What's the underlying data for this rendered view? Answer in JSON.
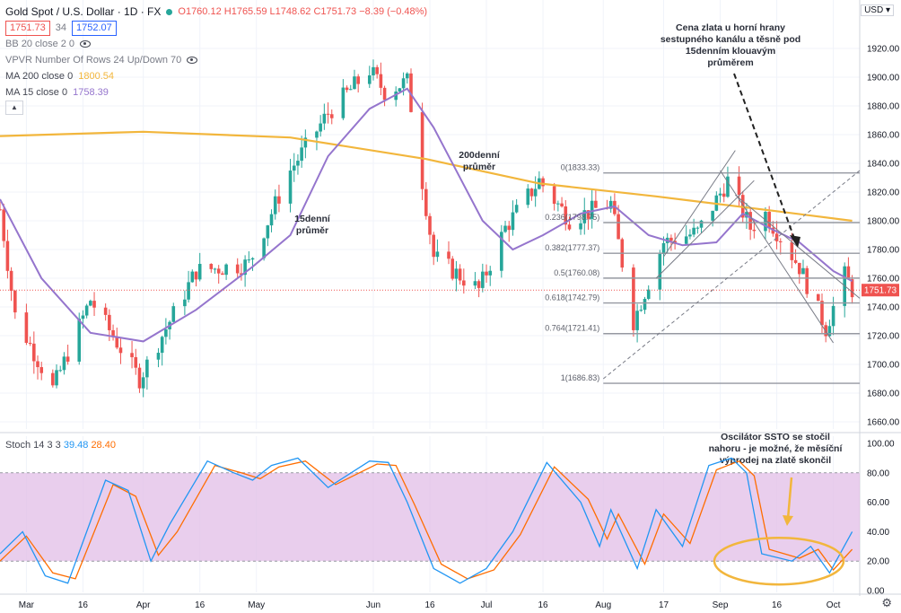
{
  "header": {
    "title": "Gold Spot / U.S. Dollar · 1D · FX",
    "ohlc": "O1760.12 H1765.59 L1748.62 C1751.73 −8.39 (−0.48%)",
    "bid": "1751.73",
    "spread": "34",
    "ask": "1752.07",
    "currency_button": "USD"
  },
  "indicators": [
    {
      "label": "BB 20 close 2 0",
      "value": ""
    },
    {
      "label": "VPVR Number Of Rows 24 Up/Down 70",
      "value": ""
    },
    {
      "label": "MA 200 close 0",
      "value": "1800.54"
    },
    {
      "label": "MA 15 close 0",
      "value": "1758.39"
    }
  ],
  "stoch": {
    "label": "Stoch 14 3 3",
    "k": "39.48",
    "d": "28.40"
  },
  "colors": {
    "up": "#26a69a",
    "down": "#ef5350",
    "ma200": "#f2b63c",
    "ma15": "#9575cd",
    "stoch_k": "#2196f3",
    "stoch_d": "#ff6d00",
    "band": "#e1bee7",
    "ellipse": "#f2b63c"
  },
  "chart_data": {
    "type": "candlestick",
    "price_axis": {
      "ticks": [
        1660,
        1680,
        1700,
        1720,
        1740,
        1760,
        1780,
        1800,
        1820,
        1840,
        1860,
        1880,
        1900,
        1920
      ],
      "ylim": [
        1655,
        1935
      ],
      "last_price": "1751.73"
    },
    "x_axis": {
      "labels": [
        "Mar",
        "16",
        "Apr",
        "16",
        "May",
        "Jun",
        "16",
        "Jul",
        "16",
        "Aug",
        "17",
        "Sep",
        "16",
        "Oct"
      ],
      "label_dates": [
        "2021-03-01",
        "2021-03-16",
        "2021-04-01",
        "2021-04-16",
        "2021-05-01",
        "2021-06-01",
        "2021-06-16",
        "2021-07-01",
        "2021-07-16",
        "2021-08-01",
        "2021-08-17",
        "2021-09-01",
        "2021-09-16",
        "2021-10-01"
      ],
      "range": [
        "2021-02-22",
        "2021-10-08"
      ]
    },
    "close_path": [
      [
        "2021-02-22",
        1808
      ],
      [
        "2021-02-26",
        1734
      ],
      [
        "2021-03-08",
        1683
      ],
      [
        "2021-03-18",
        1745
      ],
      [
        "2021-03-31",
        1690
      ],
      [
        "2021-04-15",
        1765
      ],
      [
        "2021-04-29",
        1770
      ],
      [
        "2021-05-10",
        1835
      ],
      [
        "2021-05-20",
        1875
      ],
      [
        "2021-05-31",
        1905
      ],
      [
        "2021-06-04",
        1890
      ],
      [
        "2021-06-10",
        1897
      ],
      [
        "2021-06-17",
        1775
      ],
      [
        "2021-06-29",
        1752
      ],
      [
        "2021-07-06",
        1795
      ],
      [
        "2021-07-15",
        1828
      ],
      [
        "2021-07-23",
        1801
      ],
      [
        "2021-08-03",
        1812
      ],
      [
        "2021-08-09",
        1730
      ],
      [
        "2021-08-17",
        1785
      ],
      [
        "2021-08-26",
        1792
      ],
      [
        "2021-09-03",
        1828
      ],
      [
        "2021-09-09",
        1795
      ],
      [
        "2021-09-13",
        1805
      ],
      [
        "2021-09-22",
        1768
      ],
      [
        "2021-09-29",
        1725
      ],
      [
        "2021-10-04",
        1762
      ],
      [
        "2021-10-06",
        1752
      ]
    ],
    "ma200_path": [
      [
        "2021-02-22",
        1859
      ],
      [
        "2021-04-01",
        1862
      ],
      [
        "2021-05-10",
        1858
      ],
      [
        "2021-06-15",
        1843
      ],
      [
        "2021-07-15",
        1826
      ],
      [
        "2021-08-15",
        1817
      ],
      [
        "2021-09-15",
        1807
      ],
      [
        "2021-10-06",
        1800
      ]
    ],
    "ma15_path": [
      [
        "2021-02-22",
        1815
      ],
      [
        "2021-03-05",
        1760
      ],
      [
        "2021-03-18",
        1722
      ],
      [
        "2021-04-01",
        1716
      ],
      [
        "2021-04-15",
        1738
      ],
      [
        "2021-04-30",
        1768
      ],
      [
        "2021-05-10",
        1790
      ],
      [
        "2021-05-20",
        1845
      ],
      [
        "2021-05-31",
        1878
      ],
      [
        "2021-06-10",
        1892
      ],
      [
        "2021-06-17",
        1865
      ],
      [
        "2021-06-30",
        1800
      ],
      [
        "2021-07-08",
        1780
      ],
      [
        "2021-07-16",
        1790
      ],
      [
        "2021-07-26",
        1805
      ],
      [
        "2021-08-04",
        1810
      ],
      [
        "2021-08-13",
        1790
      ],
      [
        "2021-08-22",
        1783
      ],
      [
        "2021-08-31",
        1785
      ],
      [
        "2021-09-07",
        1805
      ],
      [
        "2021-09-14",
        1795
      ],
      [
        "2021-09-22",
        1785
      ],
      [
        "2021-10-01",
        1765
      ],
      [
        "2021-10-06",
        1758
      ]
    ],
    "fibonacci": {
      "start": "2021-08-01",
      "end": "2021-10-08",
      "levels": [
        {
          "ratio": "0",
          "price": 1833.33,
          "label": "0(1833.33)"
        },
        {
          "ratio": "0.236",
          "price": 1798.75,
          "label": "0.236(1798.75)"
        },
        {
          "ratio": "0.382",
          "price": 1777.37,
          "label": "0.382(1777.37)"
        },
        {
          "ratio": "0.5",
          "price": 1760.08,
          "label": "0.5(1760.08)"
        },
        {
          "ratio": "0.618",
          "price": 1742.79,
          "label": "0.618(1742.79)"
        },
        {
          "ratio": "0.764",
          "price": 1721.41,
          "label": "0.764(1721.41)"
        },
        {
          "ratio": "1",
          "price": 1686.83,
          "label": "1(1686.83)"
        }
      ]
    },
    "channels": [
      {
        "points": [
          [
            "2021-08-17",
            1775
          ],
          [
            "2021-09-05",
            1849
          ]
        ]
      },
      {
        "points": [
          [
            "2021-08-15",
            1760
          ],
          [
            "2021-09-10",
            1828
          ]
        ]
      },
      {
        "points": [
          [
            "2021-09-01",
            1835
          ],
          [
            "2021-10-01",
            1715
          ]
        ]
      },
      {
        "points": [
          [
            "2021-09-05",
            1818
          ],
          [
            "2021-10-08",
            1746
          ]
        ]
      },
      {
        "points": [
          [
            "2021-08-01",
            1690
          ],
          [
            "2021-10-08",
            1835
          ]
        ],
        "dashed": true
      }
    ],
    "annotations": [
      {
        "text": "Cena zlata u horní hrany sestupného kanálu a těsně pod 15denním klouavým průměrem"
      },
      {
        "text": "200denní průměr"
      },
      {
        "text": "15denní průměr"
      },
      {
        "text": "Oscilátor SSTO se stočil nahoru - je možné, že měsíční výprodej na zlatě skončil"
      }
    ],
    "stoch_axis": {
      "ticks": [
        0.0,
        20.0,
        40.0,
        60.0,
        80.0,
        100.0
      ],
      "band": [
        20,
        80
      ]
    },
    "stoch_k_path": [
      [
        "2021-02-22",
        25
      ],
      [
        "2021-02-28",
        40
      ],
      [
        "2021-03-06",
        10
      ],
      [
        "2021-03-12",
        5
      ],
      [
        "2021-03-22",
        75
      ],
      [
        "2021-03-28",
        68
      ],
      [
        "2021-04-03",
        20
      ],
      [
        "2021-04-08",
        45
      ],
      [
        "2021-04-18",
        88
      ],
      [
        "2021-04-25",
        80
      ],
      [
        "2021-04-30",
        75
      ],
      [
        "2021-05-05",
        85
      ],
      [
        "2021-05-12",
        90
      ],
      [
        "2021-05-20",
        70
      ],
      [
        "2021-05-31",
        88
      ],
      [
        "2021-06-05",
        87
      ],
      [
        "2021-06-10",
        60
      ],
      [
        "2021-06-17",
        15
      ],
      [
        "2021-06-24",
        5
      ],
      [
        "2021-07-01",
        15
      ],
      [
        "2021-07-08",
        40
      ],
      [
        "2021-07-17",
        87
      ],
      [
        "2021-07-26",
        60
      ],
      [
        "2021-07-31",
        30
      ],
      [
        "2021-08-03",
        55
      ],
      [
        "2021-08-10",
        15
      ],
      [
        "2021-08-15",
        55
      ],
      [
        "2021-08-22",
        30
      ],
      [
        "2021-08-29",
        85
      ],
      [
        "2021-09-04",
        90
      ],
      [
        "2021-09-08",
        80
      ],
      [
        "2021-09-12",
        25
      ],
      [
        "2021-09-20",
        20
      ],
      [
        "2021-09-25",
        30
      ],
      [
        "2021-09-30",
        12
      ],
      [
        "2021-10-06",
        40
      ]
    ],
    "stoch_d_path": [
      [
        "2021-02-22",
        20
      ],
      [
        "2021-03-01",
        37
      ],
      [
        "2021-03-08",
        12
      ],
      [
        "2021-03-14",
        8
      ],
      [
        "2021-03-24",
        72
      ],
      [
        "2021-03-30",
        64
      ],
      [
        "2021-04-05",
        24
      ],
      [
        "2021-04-10",
        40
      ],
      [
        "2021-04-20",
        85
      ],
      [
        "2021-04-27",
        80
      ],
      [
        "2021-05-02",
        76
      ],
      [
        "2021-05-07",
        84
      ],
      [
        "2021-05-14",
        88
      ],
      [
        "2021-05-22",
        72
      ],
      [
        "2021-06-02",
        86
      ],
      [
        "2021-06-07",
        85
      ],
      [
        "2021-06-12",
        58
      ],
      [
        "2021-06-19",
        18
      ],
      [
        "2021-06-26",
        8
      ],
      [
        "2021-07-03",
        14
      ],
      [
        "2021-07-10",
        38
      ],
      [
        "2021-07-19",
        84
      ],
      [
        "2021-07-28",
        62
      ],
      [
        "2021-08-02",
        35
      ],
      [
        "2021-08-05",
        52
      ],
      [
        "2021-08-12",
        18
      ],
      [
        "2021-08-17",
        52
      ],
      [
        "2021-08-24",
        32
      ],
      [
        "2021-08-31",
        82
      ],
      [
        "2021-09-06",
        88
      ],
      [
        "2021-09-10",
        78
      ],
      [
        "2021-09-14",
        28
      ],
      [
        "2021-09-22",
        22
      ],
      [
        "2021-09-27",
        28
      ],
      [
        "2021-10-01",
        14
      ],
      [
        "2021-10-06",
        28
      ]
    ]
  }
}
